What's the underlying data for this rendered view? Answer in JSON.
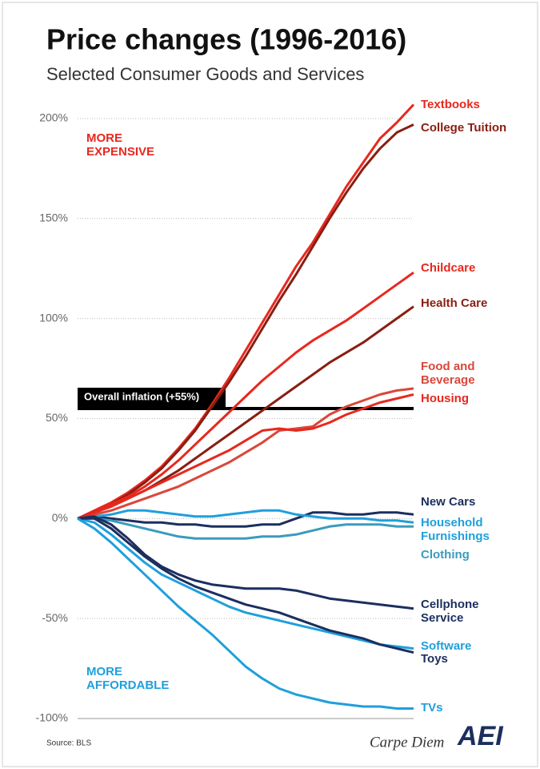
{
  "chart_data": {
    "type": "line",
    "title": "Price changes (1996-2016)",
    "subtitle": "Selected Consumer Goods and Services",
    "annotations": {
      "top": "MORE EXPENSIVE",
      "bottom": "MORE AFFORDABLE"
    },
    "source": "Source: BLS",
    "brand": "Carpe Diem",
    "logo": "AEI",
    "inflation": {
      "label": "Overall inflation (+55%)",
      "value": 55
    },
    "ylim": [
      -100,
      210
    ],
    "yticks": [
      {
        "value": 200,
        "label": "200%"
      },
      {
        "value": 150,
        "label": "150%"
      },
      {
        "value": 100,
        "label": "100%"
      },
      {
        "value": 50,
        "label": "50%"
      },
      {
        "value": 0,
        "label": "0%"
      },
      {
        "value": -50,
        "label": "-50%"
      },
      {
        "value": -100,
        "label": "-100%"
      }
    ],
    "grid": true,
    "series": [
      {
        "name": "Textbooks",
        "color": "#e8281e",
        "values": [
          0,
          4,
          8,
          13,
          19,
          26,
          35,
          45,
          57,
          70,
          84,
          98,
          112,
          126,
          138,
          152,
          166,
          178,
          190,
          198,
          207
        ]
      },
      {
        "name": "College Tuition",
        "color": "#8a1e12",
        "values": [
          0,
          3,
          7,
          12,
          18,
          25,
          34,
          44,
          56,
          68,
          81,
          95,
          109,
          122,
          136,
          150,
          163,
          175,
          185,
          193,
          197
        ]
      },
      {
        "name": "Childcare",
        "color": "#e8281e",
        "values": [
          0,
          3,
          7,
          11,
          16,
          22,
          29,
          37,
          45,
          53,
          61,
          69,
          76,
          83,
          89,
          94,
          99,
          105,
          111,
          117,
          123
        ]
      },
      {
        "name": "Health Care",
        "color": "#8a1e12",
        "values": [
          0,
          3,
          6,
          10,
          14,
          19,
          24,
          30,
          36,
          42,
          48,
          54,
          60,
          66,
          72,
          78,
          83,
          88,
          94,
          100,
          106
        ]
      },
      {
        "name": "Food and Beverage",
        "color": "#d9473a",
        "values": [
          0,
          2,
          4,
          7,
          10,
          13,
          16,
          20,
          24,
          28,
          33,
          38,
          44,
          45,
          46,
          52,
          56,
          59,
          62,
          64,
          65
        ]
      },
      {
        "name": "Housing",
        "color": "#e8281e",
        "values": [
          0,
          3,
          6,
          10,
          14,
          18,
          22,
          26,
          30,
          34,
          39,
          44,
          45,
          44,
          45,
          48,
          52,
          55,
          58,
          60,
          62
        ]
      },
      {
        "name": "New Cars",
        "color": "#1b2f5f",
        "values": [
          0,
          1,
          0,
          -1,
          -2,
          -2,
          -3,
          -3,
          -4,
          -4,
          -4,
          -3,
          -3,
          0,
          3,
          3,
          2,
          2,
          3,
          3,
          2
        ]
      },
      {
        "name": "Household Furnishings",
        "color": "#1f9fdc",
        "values": [
          0,
          1,
          2,
          4,
          4,
          3,
          2,
          1,
          1,
          2,
          3,
          4,
          4,
          2,
          1,
          0,
          0,
          0,
          -1,
          -1,
          -2
        ]
      },
      {
        "name": "Clothing",
        "color": "#3a9bbd",
        "values": [
          0,
          0,
          -1,
          -3,
          -5,
          -7,
          -9,
          -10,
          -10,
          -10,
          -10,
          -9,
          -9,
          -8,
          -6,
          -4,
          -3,
          -3,
          -3,
          -4,
          -4
        ]
      },
      {
        "name": "Cellphone Service",
        "color": "#1b2f5f",
        "values": [
          0,
          1,
          -3,
          -10,
          -18,
          -24,
          -28,
          -31,
          -33,
          -34,
          -35,
          -35,
          -35,
          -36,
          -38,
          -40,
          -41,
          -42,
          -43,
          -44,
          -45
        ]
      },
      {
        "name": "Software",
        "color": "#1f9fdc",
        "values": [
          0,
          -2,
          -8,
          -15,
          -22,
          -28,
          -32,
          -36,
          -40,
          -44,
          -47,
          -49,
          -51,
          -53,
          -55,
          -57,
          -59,
          -61,
          -63,
          -64,
          -65
        ]
      },
      {
        "name": "Toys",
        "color": "#1b2f5f",
        "values": [
          0,
          0,
          -5,
          -12,
          -19,
          -25,
          -30,
          -34,
          -37,
          -40,
          -43,
          -45,
          -47,
          -50,
          -53,
          -56,
          -58,
          -60,
          -63,
          -65,
          -67
        ]
      },
      {
        "name": "TVs",
        "color": "#1f9fdc",
        "values": [
          0,
          -5,
          -12,
          -20,
          -28,
          -36,
          -44,
          -51,
          -58,
          -66,
          -74,
          -80,
          -85,
          -88,
          -90,
          -92,
          -93,
          -94,
          -94,
          -95,
          -95
        ]
      }
    ]
  }
}
